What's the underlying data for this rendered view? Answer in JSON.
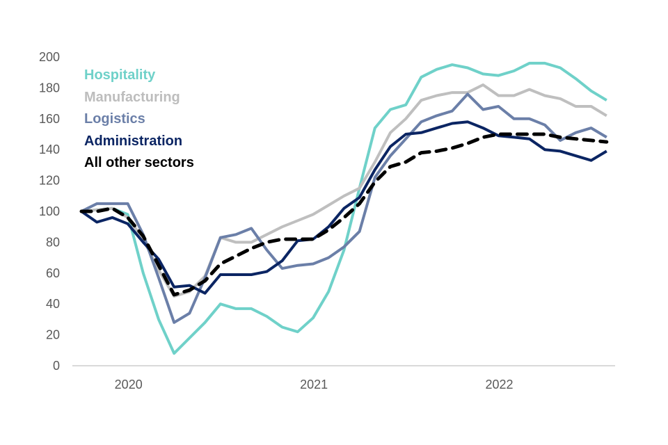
{
  "chart_data": {
    "type": "line",
    "title": "",
    "xlabel": "",
    "ylabel": "",
    "ylim": [
      0,
      200
    ],
    "yticks": [
      0,
      20,
      40,
      60,
      80,
      100,
      120,
      140,
      160,
      180,
      200
    ],
    "grid": false,
    "legend_placement": "top-left",
    "x_tick_labels": [
      {
        "label": "2020",
        "center_index": 3.05
      },
      {
        "label": "2021",
        "center_index": 15.05
      },
      {
        "label": "2022",
        "center_index": 27.05
      }
    ],
    "x_count": 35,
    "series": [
      {
        "name": "Hospitality",
        "color": "#6fd1c9",
        "dashed": false,
        "values": [
          100,
          101,
          102,
          98,
          60,
          30,
          8,
          18,
          28,
          40,
          37,
          37,
          32,
          25,
          22,
          31,
          48,
          75,
          115,
          154,
          166,
          169,
          187,
          192,
          195,
          193,
          189,
          188,
          191,
          196,
          196,
          193,
          186,
          178,
          172
        ]
      },
      {
        "name": "Manufacturing",
        "color": "#bfbfbf",
        "dashed": false,
        "values": [
          100,
          101,
          102,
          96,
          82,
          62,
          45,
          48,
          58,
          83,
          80,
          80,
          85,
          90,
          94,
          98,
          104,
          110,
          115,
          132,
          151,
          160,
          172,
          175,
          177,
          177,
          182,
          175,
          175,
          179,
          175,
          173,
          168,
          168,
          162
        ]
      },
      {
        "name": "Logistics",
        "color": "#6b7fa8",
        "dashed": false,
        "values": [
          100,
          105,
          105,
          105,
          85,
          57,
          28,
          34,
          57,
          83,
          85,
          89,
          75,
          63,
          65,
          66,
          70,
          77,
          87,
          122,
          136,
          147,
          158,
          162,
          165,
          176,
          166,
          168,
          160,
          160,
          156,
          146,
          151,
          154,
          148
        ]
      },
      {
        "name": "Administration",
        "color": "#0b2563",
        "dashed": false,
        "values": [
          100,
          93,
          96,
          92,
          80,
          69,
          51,
          52,
          47,
          59,
          59,
          59,
          61,
          68,
          81,
          82,
          90,
          102,
          109,
          127,
          142,
          150,
          151,
          154,
          157,
          158,
          154,
          149,
          148,
          147,
          140,
          139,
          136,
          133,
          139
        ]
      },
      {
        "name": "All other sectors",
        "color": "#000000",
        "dashed": true,
        "values": [
          100,
          100,
          102,
          96,
          84,
          65,
          46,
          49,
          55,
          66,
          71,
          76,
          80,
          82,
          82,
          82,
          88,
          96,
          105,
          119,
          129,
          132,
          138,
          139,
          141,
          144,
          148,
          150,
          150,
          150,
          150,
          148,
          147,
          146,
          145
        ]
      }
    ]
  }
}
